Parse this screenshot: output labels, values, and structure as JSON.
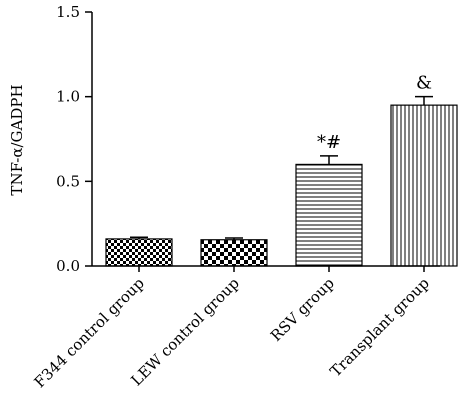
{
  "chart_data": {
    "type": "bar",
    "categories": [
      "F344 control group",
      "LEW control group",
      "RSV group",
      "Transplant group"
    ],
    "values": [
      0.16,
      0.155,
      0.6,
      0.95
    ],
    "errors": [
      0.01,
      0.01,
      0.05,
      0.05
    ],
    "annotations": [
      "",
      "",
      "*#",
      "&"
    ],
    "patterns": [
      "checker-small",
      "checker-large",
      "horizontal-lines",
      "vertical-lines"
    ],
    "title": "",
    "xlabel": "",
    "ylabel": "TNF-α/GADPH",
    "ylim": [
      0,
      1.5
    ],
    "yticks": [
      "0.0",
      "0.5",
      "1.0",
      "1.5"
    ],
    "grid": false,
    "legend": "none",
    "colors": {
      "bar_stroke": "#000000",
      "fill": "#000000",
      "background": "#ffffff"
    }
  }
}
